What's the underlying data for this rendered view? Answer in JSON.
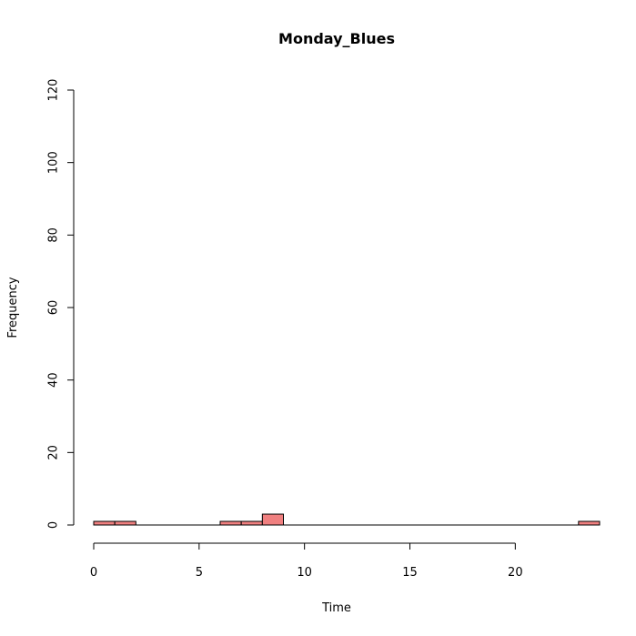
{
  "chart_data": {
    "type": "bar",
    "subtype": "histogram",
    "title": "Monday_Blues",
    "xlabel": "Time",
    "ylabel": "Frequency",
    "xlim": [
      0,
      24
    ],
    "ylim": [
      0,
      120
    ],
    "x_ticks": [
      0,
      5,
      10,
      15,
      20
    ],
    "y_ticks": [
      0,
      20,
      40,
      60,
      80,
      100,
      120
    ],
    "bar_color": "#f08080",
    "bins": [
      {
        "start": 0,
        "end": 1,
        "count": 1
      },
      {
        "start": 1,
        "end": 2,
        "count": 1
      },
      {
        "start": 2,
        "end": 3,
        "count": 0
      },
      {
        "start": 3,
        "end": 4,
        "count": 0
      },
      {
        "start": 4,
        "end": 5,
        "count": 0
      },
      {
        "start": 5,
        "end": 6,
        "count": 0
      },
      {
        "start": 6,
        "end": 7,
        "count": 1
      },
      {
        "start": 7,
        "end": 8,
        "count": 1
      },
      {
        "start": 8,
        "end": 9,
        "count": 3
      },
      {
        "start": 9,
        "end": 10,
        "count": 0
      },
      {
        "start": 10,
        "end": 11,
        "count": 0
      },
      {
        "start": 11,
        "end": 12,
        "count": 0
      },
      {
        "start": 12,
        "end": 13,
        "count": 0
      },
      {
        "start": 13,
        "end": 14,
        "count": 0
      },
      {
        "start": 14,
        "end": 15,
        "count": 0
      },
      {
        "start": 15,
        "end": 16,
        "count": 0
      },
      {
        "start": 16,
        "end": 17,
        "count": 0
      },
      {
        "start": 17,
        "end": 18,
        "count": 0
      },
      {
        "start": 18,
        "end": 19,
        "count": 0
      },
      {
        "start": 19,
        "end": 20,
        "count": 0
      },
      {
        "start": 20,
        "end": 21,
        "count": 0
      },
      {
        "start": 21,
        "end": 22,
        "count": 0
      },
      {
        "start": 22,
        "end": 23,
        "count": 0
      },
      {
        "start": 23,
        "end": 24,
        "count": 1
      }
    ],
    "grid": false,
    "legend": "none"
  }
}
